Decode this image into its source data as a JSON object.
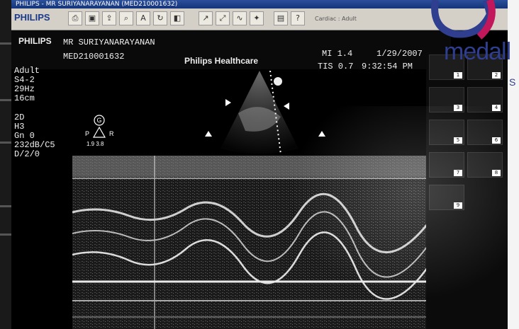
{
  "window": {
    "title": "PHILIPS - MR SURIYANARAYANAN (MED210001632)"
  },
  "toolbar": {
    "brand": "PHILIPS",
    "exam_label": "Cardiac : Adult"
  },
  "header": {
    "brand": "PHILIPS",
    "patient_name": "MR SURIYANARAYANAN",
    "patient_id": "MED210001632",
    "organization": "Philips Healthcare",
    "mi": "MI 1.4",
    "tis": "TIS 0.7",
    "date": "1/29/2007",
    "time": "9:32:54 PM"
  },
  "params": {
    "preset": "Adult",
    "probe": "S4-2",
    "frame_rate": "29Hz",
    "depth": "16cm",
    "mode": "2D",
    "harmonic": "H3",
    "gain": "Gn 0",
    "dynamic": "232dB/C5",
    "setting": "D/2/0"
  },
  "probe_marker": {
    "p": "P",
    "r": "R",
    "g": "G",
    "values": "1.9 3.8"
  },
  "thumbnails": [
    "1",
    "2",
    "3",
    "4",
    "5",
    "6",
    "7",
    "8",
    "9"
  ],
  "watermark": {
    "text": "medall",
    "sub": "S"
  },
  "colors": {
    "background": "#000000",
    "toolbar": "#d4d0c8",
    "brand_blue": "#2f3e8f",
    "accent_magenta": "#c2185b"
  }
}
